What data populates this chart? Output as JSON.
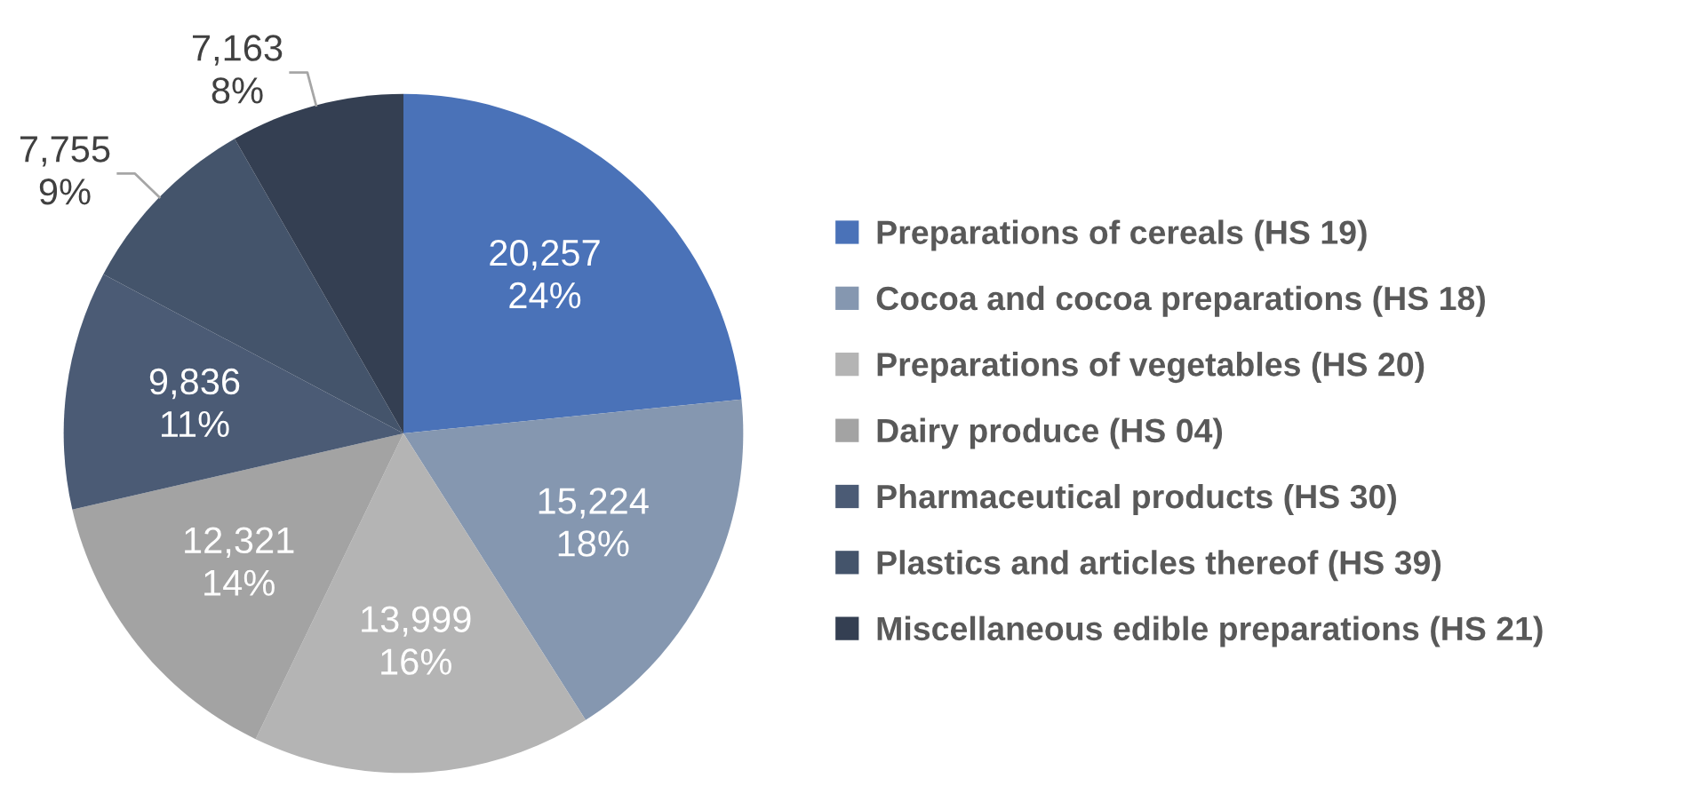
{
  "chart_data": {
    "type": "pie",
    "categories": [
      "Preparations of cereals (HS 19)",
      "Cocoa and cocoa preparations (HS 18)",
      "Preparations of vegetables (HS 20)",
      "Dairy produce (HS 04)",
      "Pharmaceutical products (HS 30)",
      "Plastics and articles thereof (HS 39)",
      "Miscellaneous edible preparations (HS 21)"
    ],
    "values": [
      20257,
      15224,
      13999,
      12321,
      9836,
      7755,
      7163
    ],
    "value_labels": [
      "20,257\n24%",
      "15,224\n18%",
      "13,999\n16%",
      "12,321\n14%",
      "9,836\n11%",
      "7,755\n9%",
      "7,163\n8%"
    ],
    "colors": [
      "#4a72b8",
      "#8597b0",
      "#b4b4b4",
      "#a3a3a3",
      "#4b5b75",
      "#44546b",
      "#343f52"
    ],
    "legend": "right"
  }
}
